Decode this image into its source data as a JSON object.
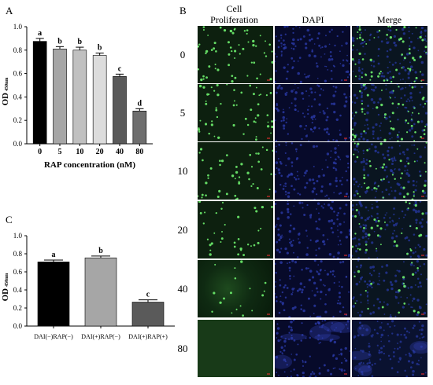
{
  "panels": {
    "a": "A",
    "b": "B",
    "c": "C"
  },
  "chart_data": [
    {
      "type": "bar",
      "ylabel": "OD",
      "ylabel_sub": "450nm",
      "xlabel": "RAP  concentration (nM)",
      "categories": [
        "0",
        "5",
        "10",
        "20",
        "40",
        "80"
      ],
      "values": [
        0.875,
        0.81,
        0.8,
        0.755,
        0.575,
        0.28
      ],
      "errors": [
        0.025,
        0.02,
        0.025,
        0.02,
        0.02,
        0.02
      ],
      "letters": [
        "a",
        "b",
        "b",
        "b",
        "c",
        "d"
      ],
      "colors": [
        "#000000",
        "#a6a6a6",
        "#c0c0c0",
        "#dcdcdc",
        "#5a5a5a",
        "#6e6e6e"
      ],
      "ylim": [
        0,
        1.0
      ],
      "yticks": [
        "0.0",
        "0.2",
        "0.4",
        "0.6",
        "0.8",
        "1.0"
      ]
    },
    {
      "type": "bar",
      "ylabel": "OD",
      "ylabel_sub": "450nm",
      "xlabel": "",
      "categories": [
        "DAI(−)RAP(−)",
        "DAI(+)RAP(−)",
        "DAI(+)RAP(+)"
      ],
      "values": [
        0.71,
        0.755,
        0.265
      ],
      "errors": [
        0.02,
        0.02,
        0.025
      ],
      "letters": [
        "a",
        "b",
        "c"
      ],
      "colors": [
        "#000000",
        "#a6a6a6",
        "#5a5a5a"
      ],
      "ylim": [
        0,
        1.0
      ],
      "yticks": [
        "0.0",
        "0.2",
        "0.4",
        "0.6",
        "0.8",
        "1.0"
      ]
    }
  ],
  "micrographs": {
    "columns": [
      "Cell\nProliferation",
      "DAPI",
      "Merge"
    ],
    "rows": [
      "0",
      "5",
      "10",
      "20",
      "40",
      "80"
    ]
  }
}
